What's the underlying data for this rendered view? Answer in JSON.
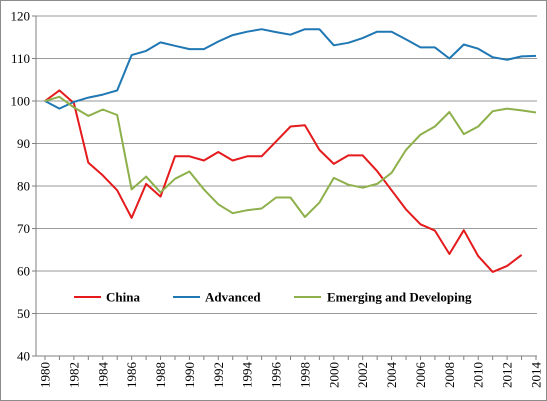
{
  "chart_data": {
    "type": "line",
    "title": "",
    "xlabel": "",
    "ylabel": "",
    "ylim": [
      40,
      120
    ],
    "yticks": [
      40,
      50,
      60,
      70,
      80,
      90,
      100,
      110,
      120
    ],
    "xticks": [
      1980,
      1982,
      1984,
      1986,
      1988,
      1990,
      1992,
      1994,
      1996,
      1998,
      2000,
      2002,
      2004,
      2006,
      2008,
      2010,
      2012,
      2014
    ],
    "xlim": [
      1980,
      2014
    ],
    "grid": "horizontal",
    "legend_position": "center-left",
    "series": [
      {
        "name": "China",
        "color": "#e41a1c",
        "x": [
          1980,
          1981,
          1982,
          1983,
          1984,
          1985,
          1986,
          1987,
          1988,
          1989,
          1990,
          1991,
          1992,
          1993,
          1994,
          1995,
          1996,
          1997,
          1998,
          1999,
          2000,
          2001,
          2002,
          2003,
          2004,
          2005,
          2006,
          2007,
          2008,
          2009,
          2010,
          2011,
          2012,
          2013
        ],
        "values": [
          100,
          102.5,
          99.5,
          85.5,
          82.5,
          79,
          72.5,
          80.5,
          77.5,
          87,
          87,
          86,
          88,
          86,
          87,
          87,
          90.5,
          94,
          94.3,
          88.5,
          85.2,
          87.2,
          87.2,
          83.5,
          79,
          74.5,
          71,
          69.5,
          64,
          69.6,
          63.5,
          59.8,
          61.2,
          63.8
        ]
      },
      {
        "name": "Advanced",
        "color": "#1f77b4",
        "x": [
          1980,
          1981,
          1982,
          1983,
          1984,
          1985,
          1986,
          1987,
          1988,
          1989,
          1990,
          1991,
          1992,
          1993,
          1994,
          1995,
          1996,
          1997,
          1998,
          1999,
          2000,
          2001,
          2002,
          2003,
          2004,
          2005,
          2006,
          2007,
          2008,
          2009,
          2010,
          2011,
          2012,
          2013,
          2014
        ],
        "values": [
          100,
          98.2,
          99.8,
          100.8,
          101.5,
          102.5,
          110.8,
          111.8,
          113.8,
          113,
          112.2,
          112.2,
          114,
          115.5,
          116.3,
          116.9,
          116.2,
          115.6,
          116.9,
          116.9,
          113.1,
          113.7,
          114.8,
          116.3,
          116.3,
          114.5,
          112.6,
          112.6,
          110,
          113.3,
          112.3,
          110.3,
          109.7,
          110.5,
          110.6
        ]
      },
      {
        "name": "Emerging and Developing",
        "color": "#8db04b",
        "x": [
          1980,
          1981,
          1982,
          1983,
          1984,
          1985,
          1986,
          1987,
          1988,
          1989,
          1990,
          1991,
          1992,
          1993,
          1994,
          1995,
          1996,
          1997,
          1998,
          1999,
          2000,
          2001,
          2002,
          2003,
          2004,
          2005,
          2006,
          2007,
          2008,
          2009,
          2010,
          2011,
          2012,
          2013,
          2014
        ],
        "values": [
          100,
          101,
          98.5,
          96.5,
          98,
          96.7,
          79.2,
          82.2,
          78.5,
          81.7,
          83.4,
          79.2,
          75.7,
          73.6,
          74.3,
          74.7,
          77.3,
          77.3,
          72.7,
          76.1,
          81.9,
          80.3,
          79.6,
          80.5,
          83.1,
          88.5,
          92.1,
          94,
          97.4,
          92.2,
          94,
          97.6,
          98.2,
          97.8,
          97.3
        ]
      }
    ]
  }
}
